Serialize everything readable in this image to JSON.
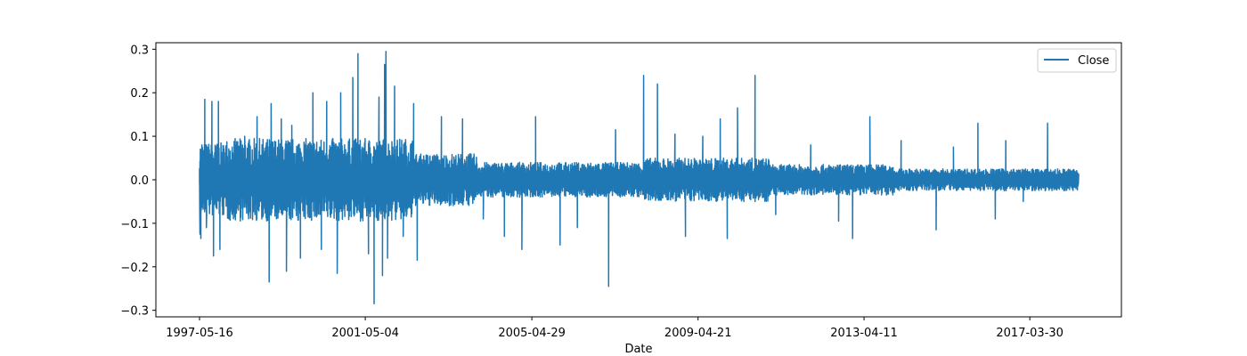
{
  "chart_data": {
    "type": "line",
    "title": "",
    "xlabel": "Date",
    "ylabel": "",
    "x_range": [
      "1997-05-16",
      "2018-05-31"
    ],
    "ylim": [
      -0.315,
      0.315
    ],
    "x_tick_labels": [
      "1997-05-16",
      "2001-05-04",
      "2005-04-29",
      "2009-04-21",
      "2013-04-11",
      "2017-03-30"
    ],
    "y_tick_values": [
      -0.3,
      -0.2,
      -0.1,
      0.0,
      0.1,
      0.2,
      0.3
    ],
    "y_tick_labels": [
      "−0.3",
      "−0.2",
      "−0.1",
      "0.0",
      "0.1",
      "0.2",
      "0.3"
    ],
    "grid": false,
    "legend": {
      "position": "top-right",
      "entries": [
        "Close"
      ]
    },
    "series": [
      {
        "name": "Close",
        "color": "#1f77b4",
        "note_on_values": "dense daily returns series; key extreme points listed, remaining volatility envelope per period",
        "points": [
          [
            "1997-05-16",
            -0.01
          ],
          [
            "1997-05-20",
            -0.125
          ],
          [
            "1997-05-23",
            0.07
          ],
          [
            "1997-05-28",
            -0.135
          ],
          [
            "1997-06-05",
            0.08
          ],
          [
            "1997-07-01",
            0.185
          ],
          [
            "1997-07-15",
            -0.11
          ],
          [
            "1997-09-01",
            0.18
          ],
          [
            "1997-09-15",
            -0.175
          ],
          [
            "1997-10-28",
            0.18
          ],
          [
            "1997-11-10",
            -0.16
          ],
          [
            "1998-06-15",
            0.1
          ],
          [
            "1998-10-01",
            0.145
          ],
          [
            "1999-01-15",
            -0.235
          ],
          [
            "1999-02-01",
            0.175
          ],
          [
            "1999-05-01",
            0.14
          ],
          [
            "1999-06-15",
            -0.21
          ],
          [
            "1999-08-01",
            0.125
          ],
          [
            "1999-10-15",
            -0.18
          ],
          [
            "2000-02-01",
            0.2
          ],
          [
            "2000-04-15",
            -0.16
          ],
          [
            "2000-06-01",
            0.18
          ],
          [
            "2000-09-01",
            -0.215
          ],
          [
            "2000-10-01",
            0.2
          ],
          [
            "2001-01-15",
            0.235
          ],
          [
            "2001-03-01",
            0.29
          ],
          [
            "2001-06-01",
            -0.17
          ],
          [
            "2001-07-20",
            -0.285
          ],
          [
            "2001-09-01",
            0.19
          ],
          [
            "2001-10-01",
            -0.22
          ],
          [
            "2001-10-20",
            0.265
          ],
          [
            "2001-11-01",
            0.295
          ],
          [
            "2001-11-15",
            -0.18
          ],
          [
            "2002-01-15",
            0.215
          ],
          [
            "2002-04-01",
            -0.13
          ],
          [
            "2002-07-01",
            0.175
          ],
          [
            "2002-08-01",
            -0.185
          ],
          [
            "2003-03-01",
            0.145
          ],
          [
            "2003-09-01",
            0.14
          ],
          [
            "2004-03-01",
            -0.09
          ],
          [
            "2004-09-01",
            -0.13
          ],
          [
            "2005-02-01",
            -0.16
          ],
          [
            "2005-06-01",
            0.145
          ],
          [
            "2006-01-01",
            -0.15
          ],
          [
            "2006-06-01",
            -0.11
          ],
          [
            "2007-03-01",
            -0.245
          ],
          [
            "2007-05-01",
            0.115
          ],
          [
            "2008-01-01",
            0.24
          ],
          [
            "2008-05-01",
            0.22
          ],
          [
            "2008-10-01",
            0.105
          ],
          [
            "2009-01-01",
            -0.13
          ],
          [
            "2009-06-01",
            0.1
          ],
          [
            "2009-11-01",
            0.14
          ],
          [
            "2010-01-01",
            -0.135
          ],
          [
            "2010-04-01",
            0.165
          ],
          [
            "2010-09-01",
            0.24
          ],
          [
            "2011-03-01",
            -0.08
          ],
          [
            "2012-01-01",
            0.08
          ],
          [
            "2012-09-01",
            -0.095
          ],
          [
            "2013-01-01",
            -0.135
          ],
          [
            "2013-06-01",
            0.145
          ],
          [
            "2014-03-01",
            0.09
          ],
          [
            "2015-01-01",
            -0.115
          ],
          [
            "2015-06-01",
            0.075
          ],
          [
            "2016-01-01",
            0.13
          ],
          [
            "2016-06-01",
            -0.09
          ],
          [
            "2016-09-01",
            0.09
          ],
          [
            "2017-02-01",
            -0.05
          ],
          [
            "2017-09-01",
            0.13
          ],
          [
            "2018-05-31",
            0.01
          ]
        ]
      }
    ]
  }
}
